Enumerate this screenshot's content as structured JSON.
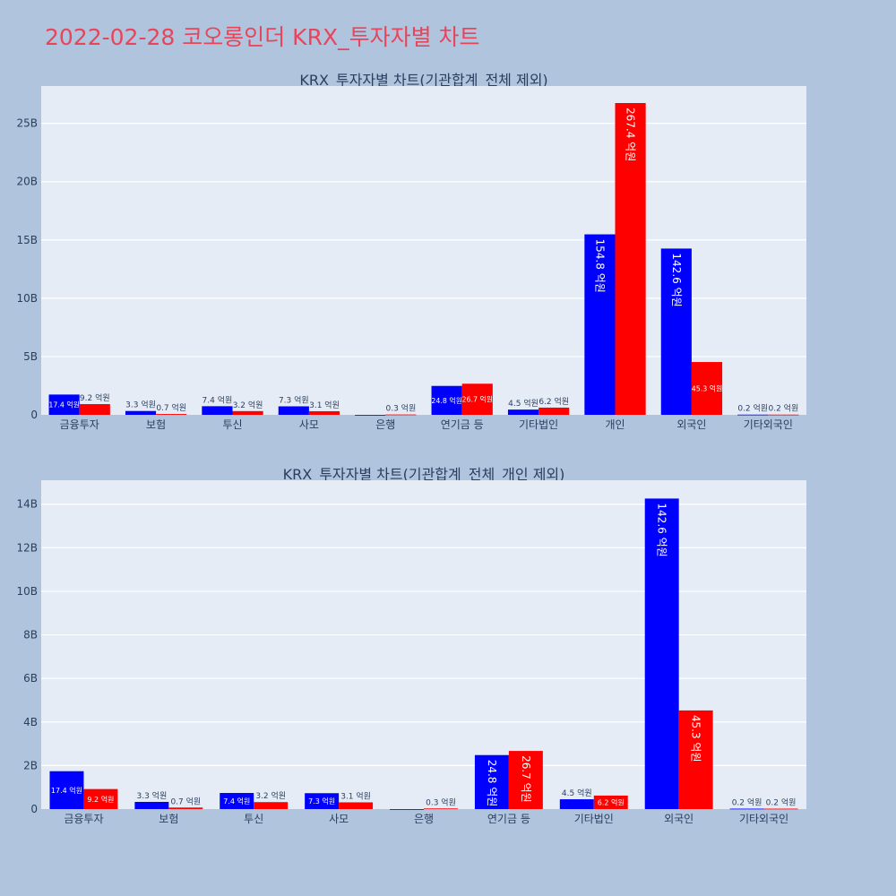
{
  "page_title": "2022-02-28 코오롱인더 KRX_투자자별 차트",
  "colors": {
    "background": "#b0c4de",
    "plot_bg": "#e5ecf6",
    "title": "#e8445a",
    "series_a": "#0000ff",
    "series_b": "#ff0000"
  },
  "chart_data": [
    {
      "type": "bar",
      "title": "KRX_투자자별 차트(기관합계_전체 제외)",
      "categories": [
        "금융투자",
        "보험",
        "투신",
        "사모",
        "은행",
        "연기금 등",
        "기타법인",
        "개인",
        "외국인",
        "기타외국인"
      ],
      "series": [
        {
          "color": "#0000ff",
          "values": [
            1.74,
            0.33,
            0.74,
            0.73,
            0.0,
            2.48,
            0.45,
            15.48,
            14.26,
            0.02
          ],
          "labels": [
            "17.4 억원",
            "3.3 억원",
            "7.4 억원",
            "7.3 억원",
            "",
            "24.8 억원",
            "4.5 억원",
            "154.8 억원",
            "142.6 억원",
            "0.2 억원"
          ]
        },
        {
          "color": "#ff0000",
          "values": [
            0.92,
            0.07,
            0.32,
            0.31,
            0.03,
            2.67,
            0.62,
            26.74,
            4.53,
            0.02
          ],
          "labels": [
            "9.2 억원",
            "0.7 억원",
            "3.2 억원",
            "3.1 억원",
            "0.3 억원",
            "26.7 억원",
            "6.2 억원",
            "267.4 억원",
            "45.3 억원",
            "0.2 억원"
          ]
        }
      ],
      "yunit": "B",
      "ylim": [
        0,
        28.2
      ],
      "yticks": [
        0,
        5,
        10,
        15,
        20,
        25
      ],
      "ytick_labels": [
        "0",
        "5B",
        "10B",
        "15B",
        "20B",
        "25B"
      ],
      "grid": true
    },
    {
      "type": "bar",
      "title": "KRX_투자자별 차트(기관합계_전체_개인 제외)",
      "categories": [
        "금융투자",
        "보험",
        "투신",
        "사모",
        "은행",
        "연기금 등",
        "기타법인",
        "외국인",
        "기타외국인"
      ],
      "series": [
        {
          "color": "#0000ff",
          "values": [
            1.74,
            0.33,
            0.74,
            0.73,
            0.0,
            2.48,
            0.45,
            14.26,
            0.02
          ],
          "labels": [
            "17.4 억원",
            "3.3 억원",
            "7.4 억원",
            "7.3 억원",
            "",
            "24.8 억원",
            "4.5 억원",
            "142.6 억원",
            "0.2 억원"
          ]
        },
        {
          "color": "#ff0000",
          "values": [
            0.92,
            0.07,
            0.32,
            0.31,
            0.03,
            2.67,
            0.62,
            4.53,
            0.02
          ],
          "labels": [
            "9.2 억원",
            "0.7 억원",
            "3.2 억원",
            "3.1 억원",
            "0.3 억원",
            "26.7 억원",
            "6.2 억원",
            "45.3 억원",
            "0.2 억원"
          ]
        }
      ],
      "yunit": "B",
      "ylim": [
        0,
        15.1
      ],
      "yticks": [
        0,
        2,
        4,
        6,
        8,
        10,
        12,
        14
      ],
      "ytick_labels": [
        "0",
        "2B",
        "4B",
        "6B",
        "8B",
        "10B",
        "12B",
        "14B"
      ],
      "grid": true
    }
  ]
}
